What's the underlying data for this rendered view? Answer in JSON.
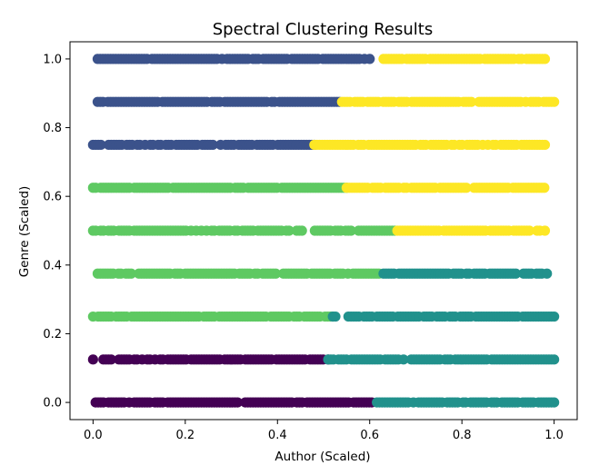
{
  "chart_data": {
    "type": "scatter",
    "title": "Spectral Clustering Results",
    "xlabel": "Author (Scaled)",
    "ylabel": "Genre (Scaled)",
    "xlim": [
      -0.05,
      1.05
    ],
    "ylim": [
      -0.05,
      1.05
    ],
    "xticks": [
      "0.0",
      "0.2",
      "0.4",
      "0.6",
      "0.8",
      "1.0"
    ],
    "yticks": [
      "0.0",
      "0.2",
      "0.4",
      "0.6",
      "0.8",
      "1.0"
    ],
    "grid": false,
    "legend": false,
    "colormap": "viridis",
    "cluster_colors": {
      "0": "#440154",
      "1": "#3b528b",
      "2": "#21918c",
      "3": "#5ec962",
      "4": "#fde725"
    },
    "genre_levels": [
      0.0,
      0.125,
      0.25,
      0.375,
      0.5,
      0.625,
      0.75,
      0.875,
      1.0
    ],
    "series": [
      {
        "genre": 1.0,
        "segments": [
          {
            "cluster": 1,
            "x_range": [
              0.01,
              0.6
            ]
          },
          {
            "cluster": 4,
            "x_range": [
              0.63,
              0.98
            ]
          }
        ]
      },
      {
        "genre": 0.875,
        "segments": [
          {
            "cluster": 1,
            "x_range": [
              0.01,
              0.54
            ]
          },
          {
            "cluster": 4,
            "x_range": [
              0.54,
              1.0
            ]
          }
        ]
      },
      {
        "genre": 0.75,
        "segments": [
          {
            "cluster": 1,
            "x_range": [
              0.0,
              0.48
            ]
          },
          {
            "cluster": 4,
            "x_range": [
              0.48,
              0.98
            ]
          }
        ]
      },
      {
        "genre": 0.625,
        "segments": [
          {
            "cluster": 3,
            "x_range": [
              0.0,
              0.55
            ]
          },
          {
            "cluster": 4,
            "x_range": [
              0.55,
              0.99
            ]
          }
        ]
      },
      {
        "genre": 0.5,
        "segments": [
          {
            "cluster": 3,
            "x_range": [
              0.0,
              0.66
            ]
          },
          {
            "cluster": 4,
            "x_range": [
              0.66,
              0.98
            ]
          }
        ]
      },
      {
        "genre": 0.375,
        "segments": [
          {
            "cluster": 3,
            "x_range": [
              0.01,
              0.62
            ]
          },
          {
            "cluster": 2,
            "x_range": [
              0.63,
              0.99
            ]
          }
        ]
      },
      {
        "genre": 0.25,
        "segments": [
          {
            "cluster": 3,
            "x_range": [
              0.0,
              0.52
            ]
          },
          {
            "cluster": 2,
            "x_range": [
              0.52,
              1.0
            ]
          }
        ]
      },
      {
        "genre": 0.125,
        "segments": [
          {
            "cluster": 0,
            "x_range": [
              0.0,
              0.51
            ]
          },
          {
            "cluster": 2,
            "x_range": [
              0.51,
              1.0
            ]
          }
        ]
      },
      {
        "genre": 0.0,
        "segments": [
          {
            "cluster": 0,
            "x_range": [
              0.0,
              0.61
            ]
          },
          {
            "cluster": 2,
            "x_range": [
              0.61,
              1.0
            ]
          }
        ]
      }
    ]
  }
}
